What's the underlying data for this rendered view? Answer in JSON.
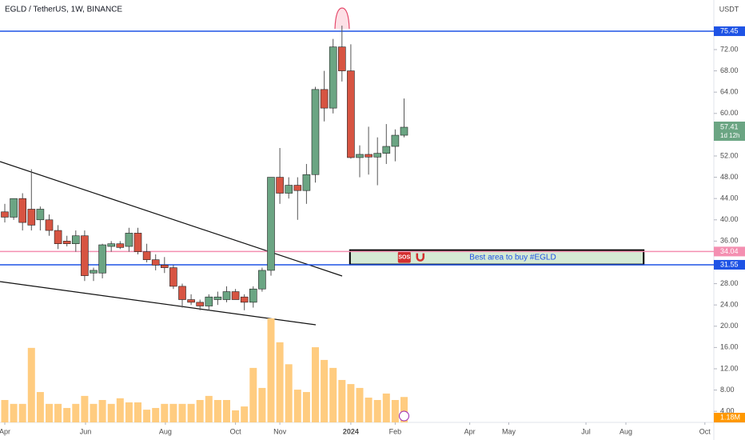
{
  "chart_data": {
    "type": "candlestick",
    "title": "EGLD / TetherUS, 1W, BINANCE",
    "currency": "USDT",
    "countdown": "1d 12h",
    "up_color": "#6ba583",
    "down_color": "#d75442",
    "x": [
      0,
      1,
      2,
      3,
      4,
      5,
      6,
      7,
      8,
      9,
      10,
      11,
      12,
      13,
      14,
      15,
      16,
      17,
      18,
      19,
      20,
      21,
      22,
      23,
      24,
      25,
      26,
      27,
      28,
      29,
      30,
      31,
      32,
      33,
      34,
      35,
      36,
      37,
      38,
      39,
      40,
      41,
      42,
      43,
      44,
      45
    ],
    "open": [
      41.5,
      40.5,
      44,
      42,
      40,
      40,
      38,
      36,
      35.5,
      37,
      30,
      30,
      35,
      35.5,
      35,
      37.5,
      34,
      32.5,
      31.5,
      31,
      27.5,
      25,
      24.5,
      23.8,
      25,
      25,
      26.5,
      25.5,
      24.5,
      27,
      30.5,
      48,
      45,
      46.5,
      45.5,
      48.5,
      64.5,
      61,
      72.5,
      68,
      51.7,
      52.3,
      51.8,
      52.5,
      53.8,
      55.9
    ],
    "high": [
      43,
      44,
      45,
      49.5,
      42.5,
      41,
      39,
      37,
      38,
      38,
      31,
      35.5,
      36,
      36,
      38.5,
      38.5,
      35.5,
      33.5,
      33,
      31.5,
      28,
      26,
      25,
      26,
      26.5,
      27.5,
      27,
      26,
      27.5,
      31,
      48,
      53.5,
      48,
      48,
      50.5,
      65,
      68,
      74,
      76.5,
      73,
      54,
      57.5,
      55.5,
      58,
      57,
      62.8
    ],
    "low": [
      39.5,
      40,
      38,
      38,
      38,
      37,
      34.5,
      35,
      34,
      28.5,
      28.5,
      29,
      34,
      34.5,
      34,
      33.5,
      32,
      30.5,
      30,
      27,
      23.5,
      24,
      23,
      23,
      24,
      24.5,
      25,
      23,
      23.5,
      26.5,
      29.5,
      43,
      44,
      40,
      43,
      47,
      58.5,
      60,
      66,
      51.5,
      48,
      48.5,
      46.5,
      50.5,
      51,
      55.5
    ],
    "close": [
      40.5,
      44,
      39.5,
      39,
      42,
      38,
      35.5,
      35.5,
      37,
      29.5,
      30.5,
      35.3,
      35.5,
      34.8,
      37.5,
      34,
      32.5,
      31.5,
      31,
      27.5,
      25,
      24.5,
      23.8,
      25.5,
      25.5,
      26.5,
      25,
      24.5,
      27,
      30.5,
      48,
      45,
      46.5,
      45.5,
      48.5,
      64.5,
      61,
      72.5,
      68,
      51.7,
      52.3,
      51.8,
      52.5,
      53.8,
      55.9,
      57.41
    ],
    "volume": {
      "color": "#ffcc80",
      "y2lim": [
        0,
        5.2
      ],
      "last_label": "1.18M",
      "values": [
        1.04,
        0.86,
        0.86,
        3.46,
        1.41,
        0.86,
        0.86,
        0.67,
        0.86,
        1.23,
        0.86,
        1.04,
        0.86,
        1.12,
        0.93,
        0.93,
        0.59,
        0.67,
        0.86,
        0.86,
        0.86,
        0.86,
        1.04,
        1.23,
        1.04,
        1.04,
        0.56,
        0.74,
        2.53,
        1.6,
        4.83,
        3.72,
        2.7,
        1.52,
        1.41,
        3.49,
        2.9,
        2.53,
        1.97,
        1.78,
        1.6,
        1.15,
        1.04,
        1.34,
        1.04,
        1.18
      ]
    },
    "xlim": [
      -0.54,
      79.91
    ],
    "xticks": [
      {
        "value": 0,
        "label": "Apr"
      },
      {
        "value": 9.1,
        "label": "Jun"
      },
      {
        "value": 18.1,
        "label": "Aug"
      },
      {
        "value": 26,
        "label": "Oct"
      },
      {
        "value": 31,
        "label": "Nov"
      },
      {
        "value": 39,
        "label": "2024"
      },
      {
        "value": 44,
        "label": "Feb"
      },
      {
        "value": 52.4,
        "label": "Apr"
      },
      {
        "value": 56.8,
        "label": "May"
      },
      {
        "value": 65.5,
        "label": "Jul"
      },
      {
        "value": 70,
        "label": "Aug"
      },
      {
        "value": 78.9,
        "label": "Oct"
      }
    ],
    "ylim": [
      1.92,
      81.32
    ],
    "yticks": [
      {
        "value": 4,
        "label": "4.00"
      },
      {
        "value": 8,
        "label": "8.00"
      },
      {
        "value": 12,
        "label": "12.00"
      },
      {
        "value": 16,
        "label": "16.00"
      },
      {
        "value": 20,
        "label": "20.00"
      },
      {
        "value": 24,
        "label": "24.00"
      },
      {
        "value": 28,
        "label": "28.00"
      },
      {
        "value": 36,
        "label": "36.00"
      },
      {
        "value": 40,
        "label": "40.00"
      },
      {
        "value": 44,
        "label": "44.00"
      },
      {
        "value": 48,
        "label": "48.00"
      },
      {
        "value": 52,
        "label": "52.00"
      },
      {
        "value": 60,
        "label": "60.00"
      },
      {
        "value": 64,
        "label": "64.00"
      },
      {
        "value": 68,
        "label": "68.00"
      },
      {
        "value": 72,
        "label": "72.00"
      }
    ],
    "grid": false,
    "levels": [
      {
        "value": 75.45,
        "color": "#1e53e5"
      },
      {
        "value": 34.04,
        "color": "#f48fb1"
      },
      {
        "value": 31.55,
        "color": "#1e53e5"
      }
    ],
    "zone": {
      "top": 34.3,
      "bottom": 31.6,
      "x": [
        38.9,
        72
      ],
      "label": "Best area to buy #EGLD",
      "icon": "SOS",
      "color": "#d5ead4"
    }
  }
}
